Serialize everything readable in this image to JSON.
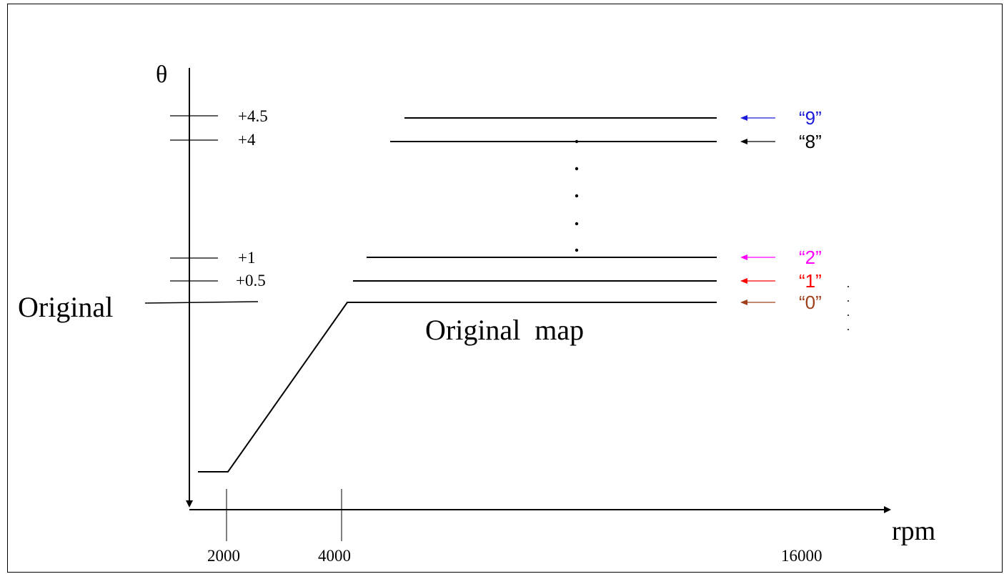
{
  "axes": {
    "y_label": "θ",
    "x_label": "rpm",
    "x_ticks": [
      "2000",
      "4000",
      "16000"
    ],
    "y_ticks": [
      "+4.5",
      "+4",
      "+1",
      "+0.5"
    ]
  },
  "labels": {
    "original": "Original",
    "original_map": "Original  map"
  },
  "maps": [
    {
      "label": "“9”",
      "color": "#1a1adb"
    },
    {
      "label": "“8”",
      "color": "#000000"
    },
    {
      "label": "“2”",
      "color": "#ff00ff"
    },
    {
      "label": "“1”",
      "color": "#ff0000"
    },
    {
      "label": "“0”",
      "color": "#a0401a"
    }
  ]
}
